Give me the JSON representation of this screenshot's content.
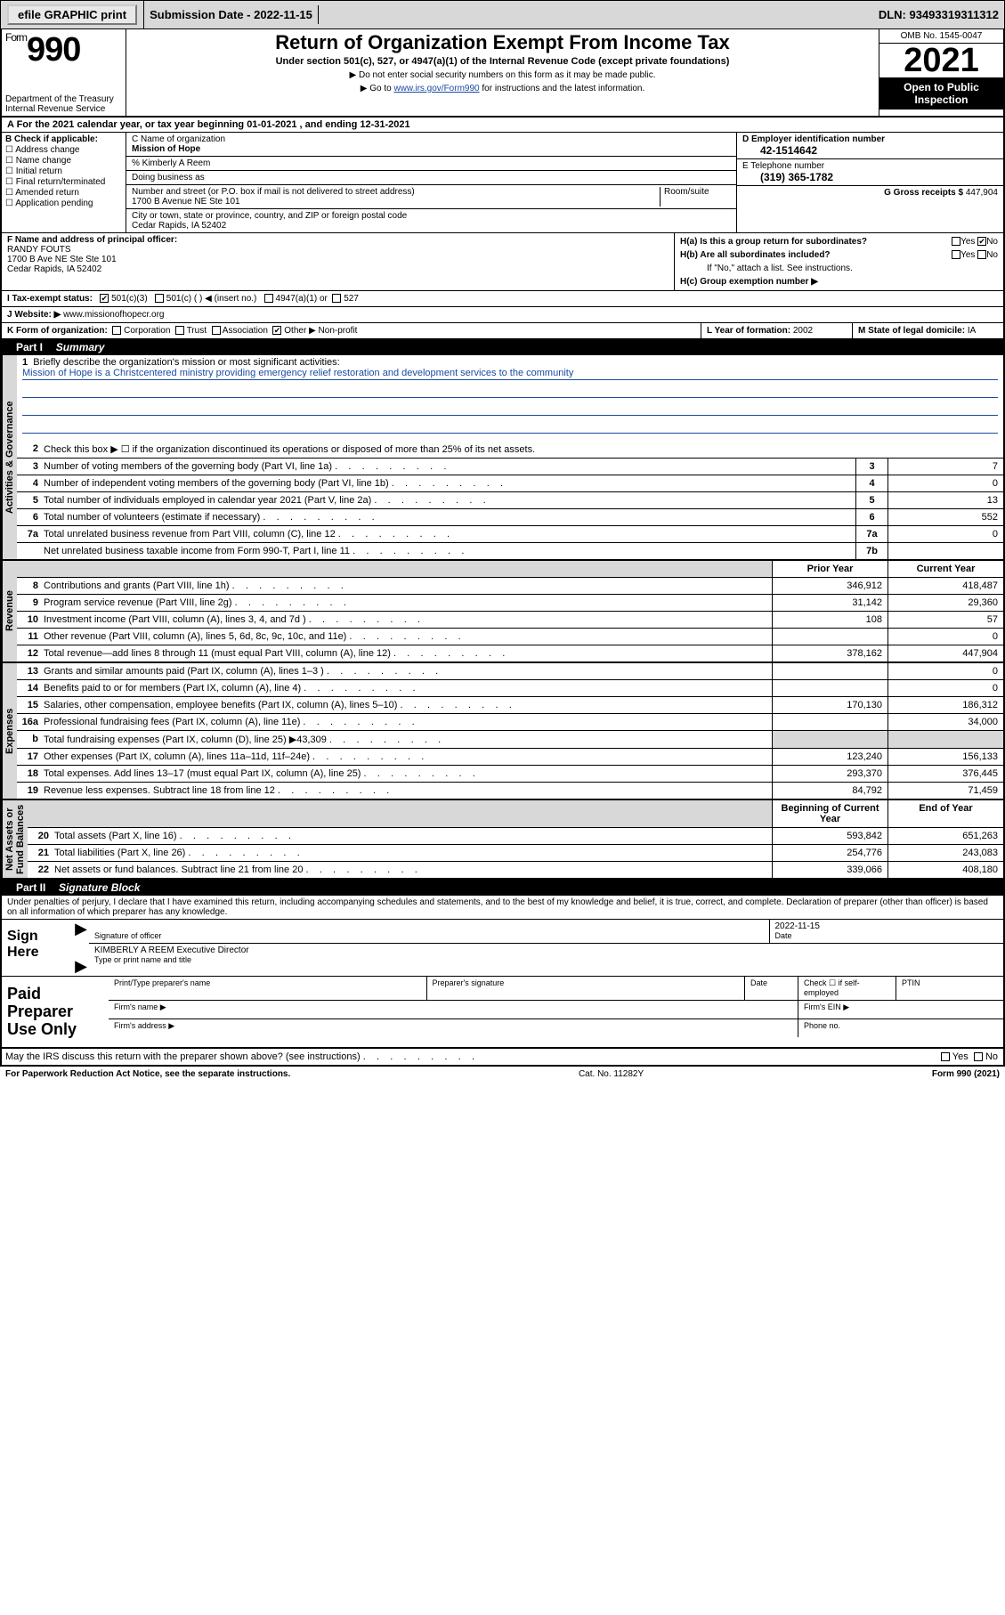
{
  "topbar": {
    "efile": "efile GRAPHIC print",
    "subdate_label": "Submission Date - ",
    "subdate": "2022-11-15",
    "dln_label": "DLN: ",
    "dln": "93493319311312"
  },
  "header": {
    "form_prefix": "Form",
    "form_no": "990",
    "title": "Return of Organization Exempt From Income Tax",
    "subtitle": "Under section 501(c), 527, or 4947(a)(1) of the Internal Revenue Code (except private foundations)",
    "note1": "▶ Do not enter social security numbers on this form as it may be made public.",
    "note2_pre": "▶ Go to ",
    "note2_link": "www.irs.gov/Form990",
    "note2_post": " for instructions and the latest information.",
    "dept": "Department of the Treasury\nInternal Revenue Service",
    "omb": "OMB No. 1545-0047",
    "year": "2021",
    "openpub": "Open to Public Inspection"
  },
  "rowA": {
    "text": "A For the 2021 calendar year, or tax year beginning 01-01-2021    , and ending 12-31-2021"
  },
  "checkB": {
    "label": "B Check if applicable:",
    "items": [
      "Address change",
      "Name change",
      "Initial return",
      "Final return/terminated",
      "Amended return",
      "Application pending"
    ]
  },
  "blockC": {
    "name_label": "C Name of organization",
    "name": "Mission of Hope",
    "care_label": "% Kimberly A Reem",
    "dba_label": "Doing business as",
    "street_label": "Number and street (or P.O. box if mail is not delivered to street address)",
    "room_label": "Room/suite",
    "street": "1700 B Avenue NE Ste 101",
    "city_label": "City or town, state or province, country, and ZIP or foreign postal code",
    "city": "Cedar Rapids, IA  52402"
  },
  "blockDE": {
    "d_label": "D Employer identification number",
    "ein": "42-1514642",
    "e_label": "E Telephone number",
    "phone": "(319) 365-1782",
    "g_label": "G Gross receipts $ ",
    "gross": "447,904"
  },
  "blockF": {
    "label": "F Name and address of principal officer:",
    "name": "RANDY FOUTS",
    "addr1": "1700 B Ave NE Ste Ste 101",
    "addr2": "Cedar Rapids, IA  52402"
  },
  "blockH": {
    "a_label": "H(a)  Is this a group return for subordinates?",
    "yes": "Yes",
    "no": "No",
    "b_label": "H(b)  Are all subordinates included?",
    "b_note": "If \"No,\" attach a list. See instructions.",
    "c_label": "H(c)  Group exemption number ▶"
  },
  "rowI": {
    "label": "I    Tax-exempt status:",
    "opt1": "501(c)(3)",
    "opt2": "501(c) (   ) ◀ (insert no.)",
    "opt3": "4947(a)(1) or",
    "opt4": "527"
  },
  "rowJ": {
    "label": "J   Website: ▶ ",
    "url": "www.missionofhopecr.org"
  },
  "rowK": {
    "label": "K Form of organization:",
    "opts": [
      "Corporation",
      "Trust",
      "Association",
      "Other ▶"
    ],
    "other_val": "Non-profit"
  },
  "rowL": {
    "label": "L Year of formation: ",
    "val": "2002"
  },
  "rowM": {
    "label": "M State of legal domicile: ",
    "val": "IA"
  },
  "part1": {
    "label": "Part I",
    "title": "Summary"
  },
  "summary": {
    "line1_label": "Briefly describe the organization's mission or most significant activities:",
    "line1_text": "Mission of Hope is a Christcentered ministry providing emergency relief restoration and development services to the community",
    "line2": "Check this box ▶ ☐  if the organization discontinued its operations or disposed of more than 25% of its net assets.",
    "rows_gov": [
      {
        "n": "3",
        "t": "Number of voting members of the governing body (Part VI, line 1a)",
        "box": "3",
        "v": "7"
      },
      {
        "n": "4",
        "t": "Number of independent voting members of the governing body (Part VI, line 1b)",
        "box": "4",
        "v": "0"
      },
      {
        "n": "5",
        "t": "Total number of individuals employed in calendar year 2021 (Part V, line 2a)",
        "box": "5",
        "v": "13"
      },
      {
        "n": "6",
        "t": "Total number of volunteers (estimate if necessary)",
        "box": "6",
        "v": "552"
      },
      {
        "n": "7a",
        "t": "Total unrelated business revenue from Part VIII, column (C), line 12",
        "box": "7a",
        "v": "0"
      },
      {
        "n": "",
        "t": "Net unrelated business taxable income from Form 990-T, Part I, line 11",
        "box": "7b",
        "v": ""
      }
    ],
    "col_hdr_prior": "Prior Year",
    "col_hdr_curr": "Current Year",
    "rows_rev": [
      {
        "n": "8",
        "t": "Contributions and grants (Part VIII, line 1h)",
        "p": "346,912",
        "c": "418,487"
      },
      {
        "n": "9",
        "t": "Program service revenue (Part VIII, line 2g)",
        "p": "31,142",
        "c": "29,360"
      },
      {
        "n": "10",
        "t": "Investment income (Part VIII, column (A), lines 3, 4, and 7d )",
        "p": "108",
        "c": "57"
      },
      {
        "n": "11",
        "t": "Other revenue (Part VIII, column (A), lines 5, 6d, 8c, 9c, 10c, and 11e)",
        "p": "",
        "c": "0"
      },
      {
        "n": "12",
        "t": "Total revenue—add lines 8 through 11 (must equal Part VIII, column (A), line 12)",
        "p": "378,162",
        "c": "447,904"
      }
    ],
    "rows_exp": [
      {
        "n": "13",
        "t": "Grants and similar amounts paid (Part IX, column (A), lines 1–3 )",
        "p": "",
        "c": "0"
      },
      {
        "n": "14",
        "t": "Benefits paid to or for members (Part IX, column (A), line 4)",
        "p": "",
        "c": "0"
      },
      {
        "n": "15",
        "t": "Salaries, other compensation, employee benefits (Part IX, column (A), lines 5–10)",
        "p": "170,130",
        "c": "186,312"
      },
      {
        "n": "16a",
        "t": "Professional fundraising fees (Part IX, column (A), line 11e)",
        "p": "",
        "c": "34,000"
      },
      {
        "n": "b",
        "t": "Total fundraising expenses (Part IX, column (D), line 25) ▶43,309",
        "p": "shade",
        "c": "shade"
      },
      {
        "n": "17",
        "t": "Other expenses (Part IX, column (A), lines 11a–11d, 11f–24e)",
        "p": "123,240",
        "c": "156,133"
      },
      {
        "n": "18",
        "t": "Total expenses. Add lines 13–17 (must equal Part IX, column (A), line 25)",
        "p": "293,370",
        "c": "376,445"
      },
      {
        "n": "19",
        "t": "Revenue less expenses. Subtract line 18 from line 12",
        "p": "84,792",
        "c": "71,459"
      }
    ],
    "col_hdr_beg": "Beginning of Current Year",
    "col_hdr_end": "End of Year",
    "rows_na": [
      {
        "n": "20",
        "t": "Total assets (Part X, line 16)",
        "p": "593,842",
        "c": "651,263"
      },
      {
        "n": "21",
        "t": "Total liabilities (Part X, line 26)",
        "p": "254,776",
        "c": "243,083"
      },
      {
        "n": "22",
        "t": "Net assets or fund balances. Subtract line 21 from line 20",
        "p": "339,066",
        "c": "408,180"
      }
    ]
  },
  "vbars": {
    "gov": "Activities & Governance",
    "rev": "Revenue",
    "exp": "Expenses",
    "na": "Net Assets or\nFund Balances"
  },
  "part2": {
    "label": "Part II",
    "title": "Signature Block"
  },
  "sig": {
    "penalties": "Under penalties of perjury, I declare that I have examined this return, including accompanying schedules and statements, and to the best of my knowledge and belief, it is true, correct, and complete. Declaration of preparer (other than officer) is based on all information of which preparer has any knowledge.",
    "sign_here": "Sign Here",
    "sig_officer": "Signature of officer",
    "date": "Date",
    "sig_date": "2022-11-15",
    "name_title": "KIMBERLY A REEM  Executive Director",
    "name_title_cap": "Type or print name and title",
    "paid": "Paid Preparer Use Only",
    "prep_name": "Print/Type preparer's name",
    "prep_sig": "Preparer's signature",
    "prep_date": "Date",
    "self_emp": "Check ☐ if self-employed",
    "ptin": "PTIN",
    "firm_name": "Firm's name    ▶",
    "firm_ein": "Firm's EIN ▶",
    "firm_addr": "Firm's address ▶",
    "phone": "Phone no.",
    "may_irs": "May the IRS discuss this return with the preparer shown above? (see instructions)"
  },
  "footer": {
    "pra": "For Paperwork Reduction Act Notice, see the separate instructions.",
    "cat": "Cat. No. 11282Y",
    "form": "Form 990 (2021)"
  }
}
